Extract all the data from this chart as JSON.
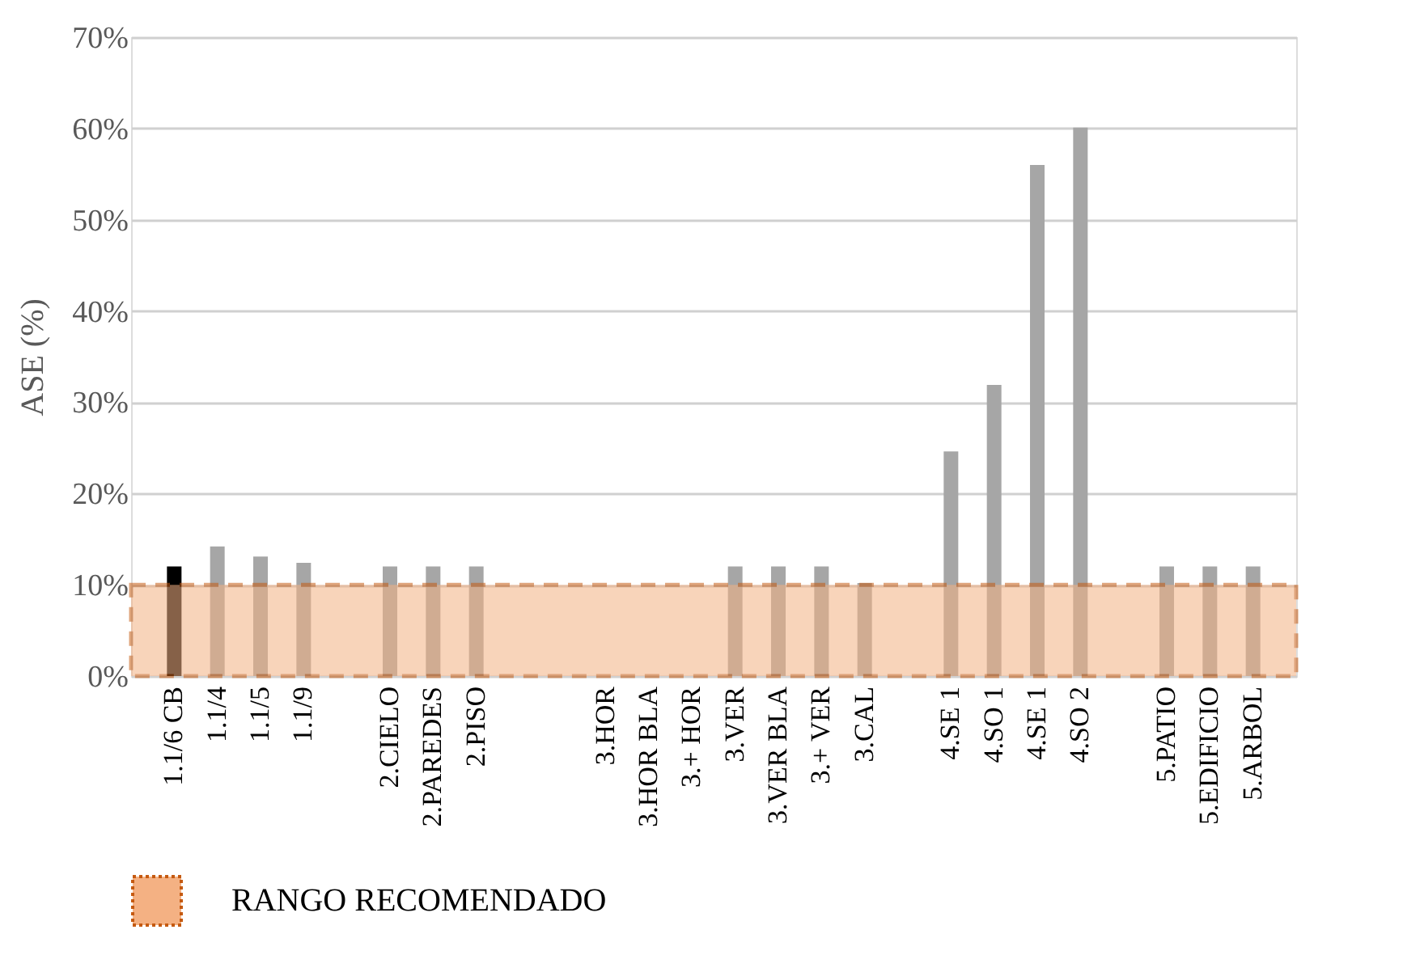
{
  "chart_data": {
    "type": "bar",
    "ylabel": "ASE (%)",
    "categories": [
      "1.1/6 CB",
      "1.1/4",
      "1.1/5",
      "1.1/9",
      null,
      "2.CIELO",
      "2.PAREDES",
      "2.PISO",
      null,
      null,
      "3.HOR",
      "3.HOR BLA",
      "3.+ HOR",
      "3.VER",
      "3.VER BLA",
      "3.+ VER",
      "3.CAL",
      null,
      "4.SE 1",
      "4.SO 1",
      "4.SE 1",
      "4.SO 2",
      null,
      "5.PATIO",
      "5.EDIFICIO",
      "5.ARBOL"
    ],
    "values": [
      12,
      14.2,
      13.1,
      12.4,
      null,
      12,
      12,
      12,
      null,
      null,
      null,
      null,
      null,
      12,
      12,
      12,
      10.2,
      null,
      24.6,
      31.9,
      56,
      60.1,
      null,
      12,
      12,
      12
    ],
    "colors": [
      "#000000",
      "#a6a6a6",
      "#a6a6a6",
      "#a6a6a6",
      "#a6a6a6",
      "#a6a6a6",
      "#a6a6a6",
      "#a6a6a6",
      "#a6a6a6",
      "#a6a6a6",
      "#a6a6a6",
      "#a6a6a6",
      "#a6a6a6",
      "#a6a6a6",
      "#a6a6a6",
      "#a6a6a6",
      "#a6a6a6",
      "#a6a6a6",
      "#a6a6a6",
      "#a6a6a6",
      "#a6a6a6",
      "#a6a6a6",
      "#a6a6a6",
      "#a6a6a6",
      "#a6a6a6",
      "#a6a6a6"
    ],
    "ylim": [
      0,
      70
    ],
    "yticks": [
      {
        "value": 0,
        "label": "0%"
      },
      {
        "value": 10,
        "label": "10%"
      },
      {
        "value": 20,
        "label": "20%"
      },
      {
        "value": 30,
        "label": "30%"
      },
      {
        "value": 40,
        "label": "40%"
      },
      {
        "value": 50,
        "label": "50%"
      },
      {
        "value": 60,
        "label": "60%"
      },
      {
        "value": 70,
        "label": "70%"
      }
    ],
    "grid": "y",
    "legend": "bottom",
    "bands": [
      {
        "axis": "y",
        "from": 0,
        "to": 10,
        "label": "RANGO RECOMENDADO",
        "color": "#f4b183"
      }
    ]
  }
}
